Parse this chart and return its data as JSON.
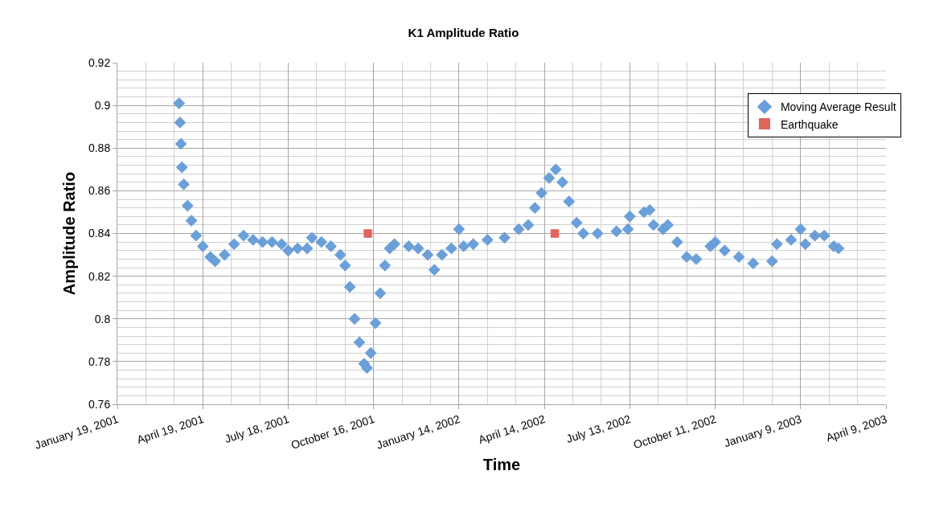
{
  "chart_data": {
    "type": "scatter",
    "title": "K1 Amplitude Ratio",
    "xlabel": "Time",
    "ylabel": "Amplitude Ratio",
    "xlim": [
      "2001-01-19",
      "2003-04-09"
    ],
    "xticks": [
      {
        "value": "2001-01-19",
        "label": "January 19, 2001"
      },
      {
        "value": "2001-04-19",
        "label": "April 19, 2001"
      },
      {
        "value": "2001-07-18",
        "label": "July 18, 2001"
      },
      {
        "value": "2001-10-16",
        "label": "October 16, 2001"
      },
      {
        "value": "2002-01-14",
        "label": "January 14, 2002"
      },
      {
        "value": "2002-04-14",
        "label": "April 14, 2002"
      },
      {
        "value": "2002-07-13",
        "label": "July 13, 2002"
      },
      {
        "value": "2002-10-11",
        "label": "October 11, 2002"
      },
      {
        "value": "2003-01-09",
        "label": "January 9, 2003"
      },
      {
        "value": "2003-04-09",
        "label": "April 9, 2003"
      }
    ],
    "ylim": [
      0.76,
      0.92
    ],
    "yticks": [
      0.76,
      0.78,
      0.8,
      0.82,
      0.84,
      0.86,
      0.88,
      0.9,
      0.92
    ],
    "grid": true,
    "legend": "top right",
    "series": [
      {
        "name": "Moving Average Result",
        "color": "#6a9fd8",
        "marker": "diamond",
        "x": [
          "2001-03-25",
          "2001-03-26",
          "2001-03-27",
          "2001-03-28",
          "2001-03-30",
          "2001-04-03",
          "2001-04-07",
          "2001-04-12",
          "2001-04-19",
          "2001-04-27",
          "2001-05-02",
          "2001-05-12",
          "2001-05-22",
          "2001-06-01",
          "2001-06-11",
          "2001-06-21",
          "2001-07-01",
          "2001-07-11",
          "2001-07-18",
          "2001-07-28",
          "2001-08-07",
          "2001-08-12",
          "2001-08-22",
          "2001-09-01",
          "2001-09-11",
          "2001-09-16",
          "2001-09-21",
          "2001-09-26",
          "2001-10-01",
          "2001-10-06",
          "2001-10-09",
          "2001-10-13",
          "2001-10-18",
          "2001-10-23",
          "2001-10-28",
          "2001-11-02",
          "2001-11-07",
          "2001-11-22",
          "2001-12-02",
          "2001-12-12",
          "2001-12-19",
          "2001-12-27",
          "2002-01-06",
          "2002-01-14",
          "2002-01-19",
          "2002-01-29",
          "2002-02-13",
          "2002-03-03",
          "2002-03-18",
          "2002-03-28",
          "2002-04-04",
          "2002-04-11",
          "2002-04-19",
          "2002-04-26",
          "2002-05-03",
          "2002-05-10",
          "2002-05-18",
          "2002-05-25",
          "2002-06-09",
          "2002-06-29",
          "2002-07-11",
          "2002-07-13",
          "2002-07-28",
          "2002-08-03",
          "2002-08-07",
          "2002-08-17",
          "2002-08-22",
          "2002-09-01",
          "2002-09-11",
          "2002-09-21",
          "2002-10-06",
          "2002-10-11",
          "2002-10-21",
          "2002-11-05",
          "2002-11-20",
          "2002-12-10",
          "2002-12-15",
          "2002-12-30",
          "2003-01-09",
          "2003-01-14",
          "2003-01-24",
          "2003-02-03",
          "2003-02-13",
          "2003-02-18"
        ],
        "values": [
          0.901,
          0.892,
          0.882,
          0.871,
          0.863,
          0.853,
          0.846,
          0.839,
          0.834,
          0.829,
          0.827,
          0.83,
          0.835,
          0.839,
          0.837,
          0.836,
          0.836,
          0.835,
          0.832,
          0.833,
          0.833,
          0.838,
          0.836,
          0.834,
          0.83,
          0.825,
          0.815,
          0.8,
          0.789,
          0.779,
          0.777,
          0.784,
          0.798,
          0.812,
          0.825,
          0.833,
          0.835,
          0.834,
          0.833,
          0.83,
          0.823,
          0.83,
          0.833,
          0.842,
          0.834,
          0.835,
          0.837,
          0.838,
          0.842,
          0.844,
          0.852,
          0.859,
          0.866,
          0.87,
          0.864,
          0.855,
          0.845,
          0.84,
          0.84,
          0.841,
          0.842,
          0.848,
          0.85,
          0.851,
          0.844,
          0.842,
          0.844,
          0.836,
          0.829,
          0.828,
          0.834,
          0.836,
          0.832,
          0.829,
          0.826,
          0.827,
          0.835,
          0.837,
          0.842,
          0.835,
          0.839,
          0.839,
          0.834,
          0.833
        ]
      },
      {
        "name": "Earthquake",
        "color": "#e0645c",
        "marker": "square",
        "x": [
          "2001-10-10",
          "2002-04-25"
        ],
        "values": [
          0.84,
          0.84
        ]
      }
    ]
  }
}
